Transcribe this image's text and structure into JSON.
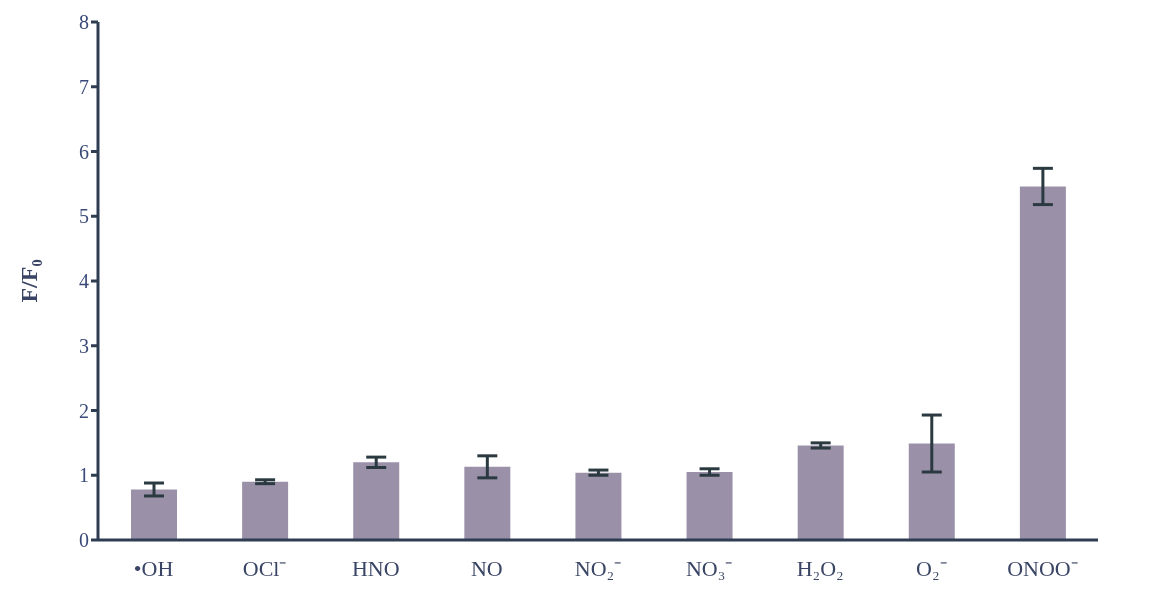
{
  "chart_data": {
    "type": "bar",
    "ylabel": "F/F₀",
    "categories": [
      "•OH",
      "OCl⁻",
      "HNO",
      "NO",
      "NO₂⁻",
      "NO₃⁻",
      "H₂O₂",
      "O₂⁻",
      "ONOO⁻"
    ],
    "values": [
      0.78,
      0.9,
      1.2,
      1.13,
      1.04,
      1.05,
      1.46,
      1.49,
      5.46
    ],
    "errors": [
      0.1,
      0.03,
      0.08,
      0.17,
      0.04,
      0.05,
      0.04,
      0.44,
      0.28
    ],
    "color": "#9a91a9",
    "ylim": [
      0,
      8
    ],
    "yticks": [
      0,
      1,
      2,
      3,
      4,
      5,
      6,
      7,
      8
    ],
    "grid": false
  }
}
